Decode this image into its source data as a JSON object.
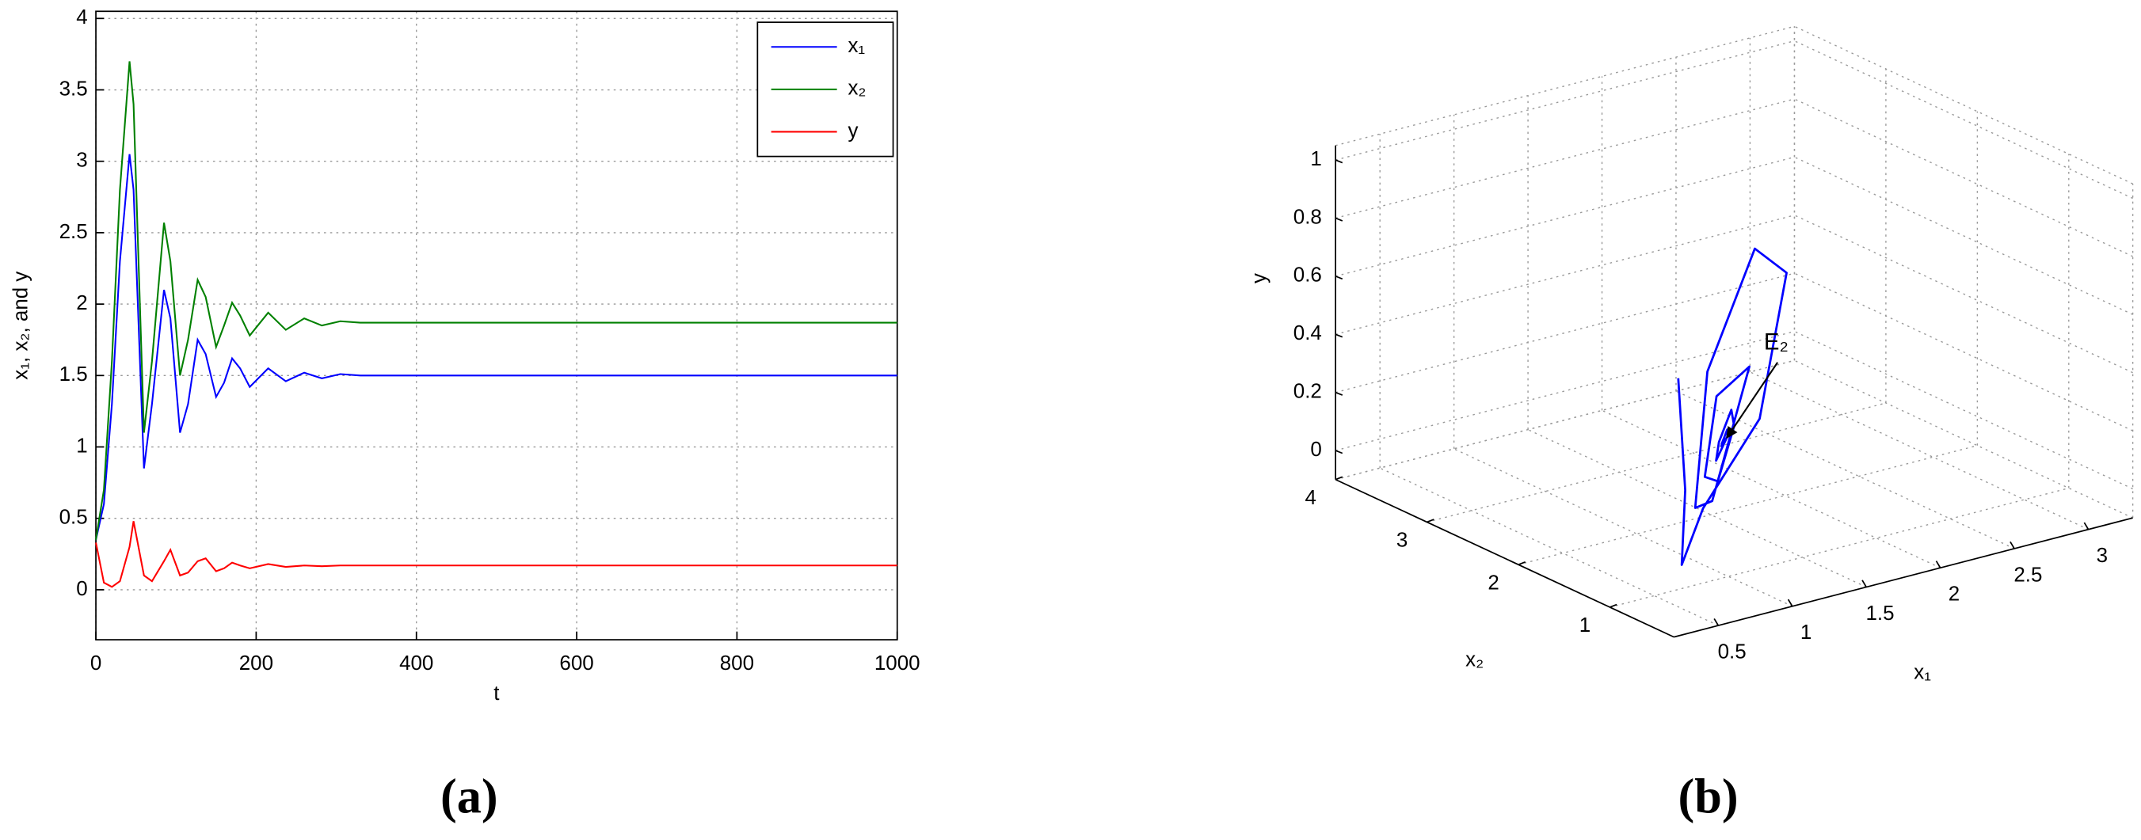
{
  "chart_data": [
    {
      "type": "line",
      "caption": "(a)",
      "xlabel": "t",
      "ylabel": "x₁, x₂, and y",
      "x": [
        0,
        10,
        20,
        30,
        42,
        47,
        60,
        70,
        85,
        93,
        105,
        115,
        127,
        137,
        150,
        160,
        170,
        180,
        192,
        215,
        237,
        260,
        282,
        305,
        330,
        400,
        500,
        1000
      ],
      "series": [
        {
          "name": "x₁",
          "color": "#0000ff",
          "values": [
            0.35,
            0.6,
            1.3,
            2.3,
            3.05,
            2.8,
            0.85,
            1.3,
            2.1,
            1.9,
            1.1,
            1.3,
            1.75,
            1.65,
            1.35,
            1.45,
            1.62,
            1.55,
            1.42,
            1.55,
            1.46,
            1.52,
            1.48,
            1.51,
            1.5,
            1.5,
            1.5,
            1.5
          ]
        },
        {
          "name": "x₂",
          "color": "#008000",
          "values": [
            0.35,
            0.7,
            1.6,
            2.8,
            3.7,
            3.4,
            1.1,
            1.6,
            2.57,
            2.3,
            1.5,
            1.75,
            2.17,
            2.05,
            1.7,
            1.85,
            2.01,
            1.92,
            1.78,
            1.94,
            1.82,
            1.9,
            1.85,
            1.88,
            1.87,
            1.87,
            1.87,
            1.87
          ]
        },
        {
          "name": "y",
          "color": "#ff0000",
          "values": [
            0.33,
            0.05,
            0.02,
            0.06,
            0.3,
            0.48,
            0.1,
            0.06,
            0.2,
            0.28,
            0.1,
            0.12,
            0.2,
            0.22,
            0.13,
            0.15,
            0.19,
            0.17,
            0.15,
            0.18,
            0.16,
            0.17,
            0.165,
            0.17,
            0.17,
            0.17,
            0.17,
            0.17
          ]
        }
      ],
      "xlim": [
        0,
        1000
      ],
      "xticks": [
        0,
        200,
        400,
        600,
        800,
        1000
      ],
      "ylim": [
        -0.35,
        4.05
      ],
      "yticks": [
        0,
        0.5,
        1,
        1.5,
        2,
        2.5,
        3,
        3.5,
        4
      ],
      "grid": true,
      "legend": "upper right"
    },
    {
      "type": "line3d",
      "caption": "(b)",
      "xlabel": "x₁",
      "ylabel": "x₂",
      "zlabel": "y",
      "series": [
        {
          "color": "#0000ff",
          "x": [
            0.6,
            0.4,
            0.5,
            1.2,
            2.2,
            3.0,
            2.6,
            1.6,
            0.9,
            1.2,
            1.9,
            2.1,
            1.6,
            1.15,
            1.3,
            1.75,
            1.7,
            1.4,
            1.35,
            1.6,
            1.58,
            1.45,
            1.48,
            1.53,
            1.5
          ],
          "y": [
            0.9,
            0.5,
            0.7,
            1.6,
            2.6,
            3.6,
            3.3,
            2.2,
            1.2,
            1.5,
            2.4,
            2.55,
            2.1,
            1.5,
            1.6,
            2.15,
            2.1,
            1.75,
            1.7,
            1.98,
            1.95,
            1.8,
            1.85,
            1.9,
            1.87
          ],
          "z": [
            0.65,
            0.35,
            0.05,
            0.02,
            0.05,
            0.3,
            0.48,
            0.35,
            0.12,
            0.06,
            0.1,
            0.25,
            0.28,
            0.15,
            0.1,
            0.15,
            0.22,
            0.2,
            0.15,
            0.16,
            0.19,
            0.18,
            0.16,
            0.175,
            0.17
          ]
        }
      ],
      "annotation": {
        "text": "E₂",
        "x": 1.5,
        "y": 1.87,
        "z": 0.17
      },
      "xlim": [
        0.2,
        3.3
      ],
      "xticks": [
        0.5,
        1,
        1.5,
        2,
        2.5,
        3
      ],
      "ylim": [
        0.3,
        4
      ],
      "yticks": [
        1,
        2,
        3,
        4
      ],
      "zlim": [
        -0.1,
        1.05
      ],
      "zticks": [
        0,
        0.2,
        0.4,
        0.6,
        0.8,
        1
      ],
      "grid": true
    }
  ]
}
